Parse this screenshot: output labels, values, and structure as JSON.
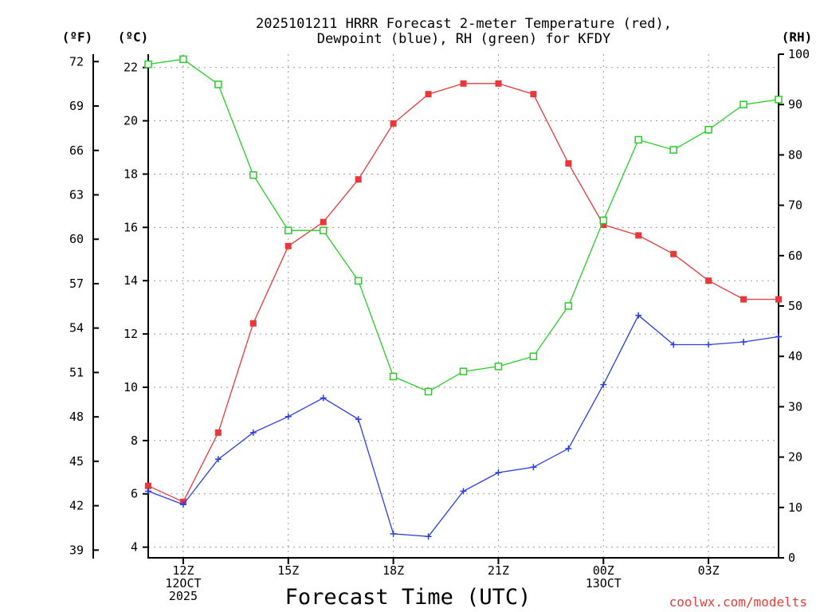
{
  "title_line1": "2025101211 HRRR Forecast 2-meter Temperature (red),",
  "title_line2": "Dewpoint (blue), RH (green) for KFDY",
  "unit_f": "(ºF)",
  "unit_c": "(ºC)",
  "unit_rh": "(RH)",
  "credit": "coolwx.com/modelts",
  "chart_data": {
    "type": "line",
    "title": "2025101211 HRRR Forecast 2-meter Temperature (red), Dewpoint (blue), RH (green) for KFDY",
    "xlabel": "Forecast Time (UTC)",
    "x_hours_from_11z": [
      0,
      1,
      2,
      3,
      4,
      5,
      6,
      7,
      8,
      9,
      10,
      11,
      12,
      13,
      14,
      15,
      16,
      17,
      18
    ],
    "xlim": [
      0,
      18
    ],
    "x_ticks": [
      {
        "hour": 1,
        "lines": [
          "12Z",
          "12OCT",
          "2025"
        ]
      },
      {
        "hour": 4,
        "lines": [
          "15Z"
        ]
      },
      {
        "hour": 7,
        "lines": [
          "18Z"
        ]
      },
      {
        "hour": 10,
        "lines": [
          "21Z"
        ]
      },
      {
        "hour": 13,
        "lines": [
          "00Z",
          "13OCT"
        ]
      },
      {
        "hour": 16,
        "lines": [
          "03Z"
        ]
      }
    ],
    "ylim_c": [
      3.6,
      22.5
    ],
    "y_ticks_c": [
      "4",
      "6",
      "8",
      "10",
      "12",
      "14",
      "16",
      "18",
      "20",
      "22"
    ],
    "y_ticks_f": [
      "39",
      "42",
      "45",
      "48",
      "51",
      "54",
      "57",
      "60",
      "63",
      "66",
      "69",
      "72"
    ],
    "ylim_rh": [
      0,
      100
    ],
    "y_ticks_rh": [
      "0",
      "10",
      "20",
      "30",
      "40",
      "50",
      "60",
      "70",
      "80",
      "90",
      "100"
    ],
    "grid": true,
    "series": [
      {
        "name": "Temperature",
        "color": "#e8383a",
        "marker": "filled-square",
        "values_c": [
          6.3,
          5.7,
          8.3,
          12.4,
          15.3,
          16.2,
          17.8,
          19.9,
          21.0,
          21.4,
          21.4,
          21.0,
          18.4,
          16.1,
          15.7,
          15.0,
          14.0,
          13.3,
          13.3
        ]
      },
      {
        "name": "Dewpoint",
        "color": "#2a3ee8",
        "marker": "plus",
        "values_c": [
          6.1,
          5.6,
          7.3,
          8.3,
          8.9,
          9.6,
          8.8,
          4.5,
          4.4,
          6.1,
          6.8,
          7.0,
          7.7,
          10.1,
          12.7,
          11.6,
          11.6,
          11.7,
          11.9
        ]
      },
      {
        "name": "RH",
        "color": "#22d022",
        "marker": "open-square",
        "values_rh": [
          98,
          99,
          94,
          76,
          65,
          65,
          55,
          36,
          33,
          37,
          38,
          40,
          50,
          67,
          83,
          81,
          85,
          90,
          91
        ]
      }
    ]
  }
}
